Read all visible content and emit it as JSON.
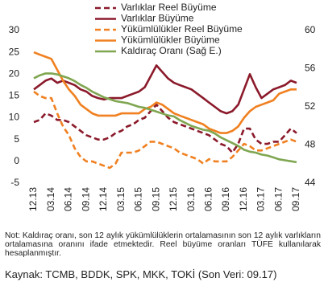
{
  "chart_data": {
    "type": "line",
    "categories": [
      "12.13",
      null,
      null,
      "03.14",
      null,
      null,
      "06.14",
      null,
      null,
      "09.14",
      null,
      null,
      "12.14",
      null,
      null,
      "03.15",
      null,
      null,
      "06.15",
      null,
      null,
      "09.15",
      null,
      null,
      "12.15",
      null,
      null,
      "03.16",
      null,
      null,
      "06.16",
      null,
      null,
      "09.16",
      null,
      null,
      "12.16",
      null,
      null,
      "03.17",
      null,
      null,
      "06.17",
      null,
      null,
      "09.17"
    ],
    "series": [
      {
        "name": "Varlıklar Reel Büyüme",
        "color": "#8b1a2b",
        "dash": true,
        "axis": "y",
        "values": [
          9,
          9.5,
          11,
          10.5,
          9.5,
          9.5,
          9,
          8,
          7,
          6,
          5.5,
          5,
          5,
          5.5,
          6.5,
          7,
          8,
          8.5,
          9.5,
          10,
          11.5,
          13,
          11.5,
          10,
          9,
          8.5,
          8,
          7.5,
          7,
          6.5,
          6,
          5,
          4,
          3.5,
          2,
          4,
          7.5,
          7.5,
          5,
          4,
          4,
          4.5,
          4.5,
          6,
          7.5,
          6.5
        ]
      },
      {
        "name": "Varlıklar Büyüme",
        "color": "#8b1a2b",
        "dash": false,
        "axis": "y",
        "values": [
          16.5,
          17.5,
          18.5,
          19,
          18,
          18.5,
          18,
          17.5,
          16.5,
          16,
          15,
          14.5,
          14.2,
          14.5,
          14.5,
          14.5,
          15,
          15.5,
          16,
          17,
          19.5,
          22,
          20.5,
          19,
          18,
          17.5,
          17,
          16.5,
          15.5,
          14.5,
          13.5,
          12.5,
          11.5,
          11,
          11.5,
          13,
          16.5,
          20,
          17,
          14.5,
          15.5,
          16.5,
          17,
          17.5,
          18.5,
          18
        ]
      },
      {
        "name": "Yükümlülükler Reel Büyüme",
        "color": "#f08020",
        "dash": true,
        "axis": "y",
        "values": [
          16,
          15,
          14.5,
          14.5,
          11,
          8,
          6,
          3,
          1,
          0,
          0,
          -0.5,
          -1,
          -1.5,
          -0.5,
          2,
          2,
          2,
          2.5,
          3.5,
          4.5,
          4.5,
          4,
          3.5,
          3,
          2,
          1.5,
          1,
          0.5,
          -0.5,
          0.5,
          0,
          0,
          0,
          1,
          2.5,
          4,
          3.5,
          2.5,
          2.5,
          3,
          3.5,
          4,
          4.5,
          5,
          4.5
        ]
      },
      {
        "name": "Yükümlülükler Büyüme",
        "color": "#f08020",
        "dash": false,
        "axis": "y",
        "values": [
          25,
          24.5,
          24,
          23.5,
          21,
          18.5,
          16.5,
          15,
          13,
          12,
          11,
          10.5,
          10.5,
          10.5,
          10.5,
          11,
          11,
          11,
          11,
          12,
          12.5,
          13.5,
          13,
          12,
          11,
          10.5,
          10,
          9.5,
          9,
          8.5,
          7.5,
          7,
          6.5,
          6.5,
          7,
          8,
          10,
          11.5,
          12.5,
          13,
          13.5,
          14,
          15.5,
          16,
          16.5,
          16.5
        ]
      },
      {
        "name": "Kaldıraç Oranı (Sağ E.)",
        "color": "#7fa650",
        "dash": false,
        "axis": "y2",
        "values": [
          55,
          55.3,
          55.5,
          55.5,
          55.4,
          55.2,
          55,
          54.7,
          54.3,
          54,
          53.6,
          53.3,
          53,
          52.8,
          52.6,
          52.5,
          52.4,
          52.2,
          52,
          51.9,
          51.7,
          51.5,
          51.3,
          51.1,
          51,
          50.6,
          50.3,
          50,
          49.8,
          49.6,
          49.5,
          49.2,
          48.8,
          48.5,
          48.2,
          47.9,
          47.5,
          47.3,
          47.2,
          47,
          46.9,
          46.7,
          46.5,
          46.4,
          46.3,
          46.2
        ]
      }
    ],
    "ylim": [
      -5,
      30
    ],
    "yticks": [
      -5,
      0,
      5,
      10,
      15,
      20,
      25,
      30
    ],
    "y2lim": [
      44,
      60
    ],
    "y2ticks": [
      44,
      48,
      52,
      56,
      60
    ],
    "grid": false,
    "legend": "top"
  },
  "note": "Not: Kaldıraç oranı, son 12 aylık yükümlülüklerin ortalamasının son 12 aylık varlıkların ortalamasına oranını ifade etmektedir. Reel büyüme oranları TÜFE kullanılarak hesaplanmıştır.",
  "source": "Kaynak: TCMB, BDDK, SPK, MKK, TOKİ (Son Veri: 09.17)"
}
